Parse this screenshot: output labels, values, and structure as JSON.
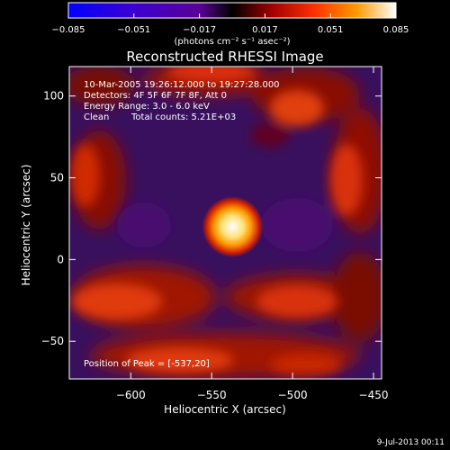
{
  "chart_data": {
    "type": "heatmap",
    "title": "Reconstructed RHESSI Image",
    "xlabel": "Heliocentric X (arcsec)",
    "ylabel": "Heliocentric Y (arcsec)",
    "xlim": [
      -638,
      -445
    ],
    "ylim": [
      -73,
      118
    ],
    "x_ticks": [
      -600,
      -550,
      -500,
      -450
    ],
    "y_ticks": [
      -50,
      0,
      50,
      100
    ],
    "x_tick_labels": [
      "−600",
      "−550",
      "−500",
      "−450"
    ],
    "y_tick_labels": [
      "−50",
      "0",
      "50",
      "100"
    ],
    "colorbar": {
      "range": [
        -0.085,
        0.085
      ],
      "tick_values": [
        -0.085,
        -0.051,
        -0.017,
        0.017,
        0.051,
        0.085
      ],
      "tick_labels": [
        "−0.085",
        "−0.051",
        "−0.017",
        "0.017",
        "0.051",
        "0.085"
      ],
      "unit_label": "(photons cm⁻² s⁻¹ asec⁻²)",
      "colors": [
        "#0000ff",
        "#3c00d2",
        "#5a0096",
        "#000000",
        "#a00000",
        "#ff3000",
        "#ff9a00",
        "#ffffff"
      ]
    },
    "annotations": [
      "10-Mar-2005 19:26:12.000 to 19:27:28.000",
      "Detectors: 4F 5F 6F 7F 8F, Att 0",
      "Energy Range: 3.0 - 6.0 keV",
      "Clean",
      "Total counts: 5.21E+03"
    ],
    "peak_label": "Position of Peak = [-537,20]",
    "peak": {
      "x": -537,
      "y": 20,
      "value": 0.085
    },
    "footer": "9-Jul-2013 00:11"
  }
}
